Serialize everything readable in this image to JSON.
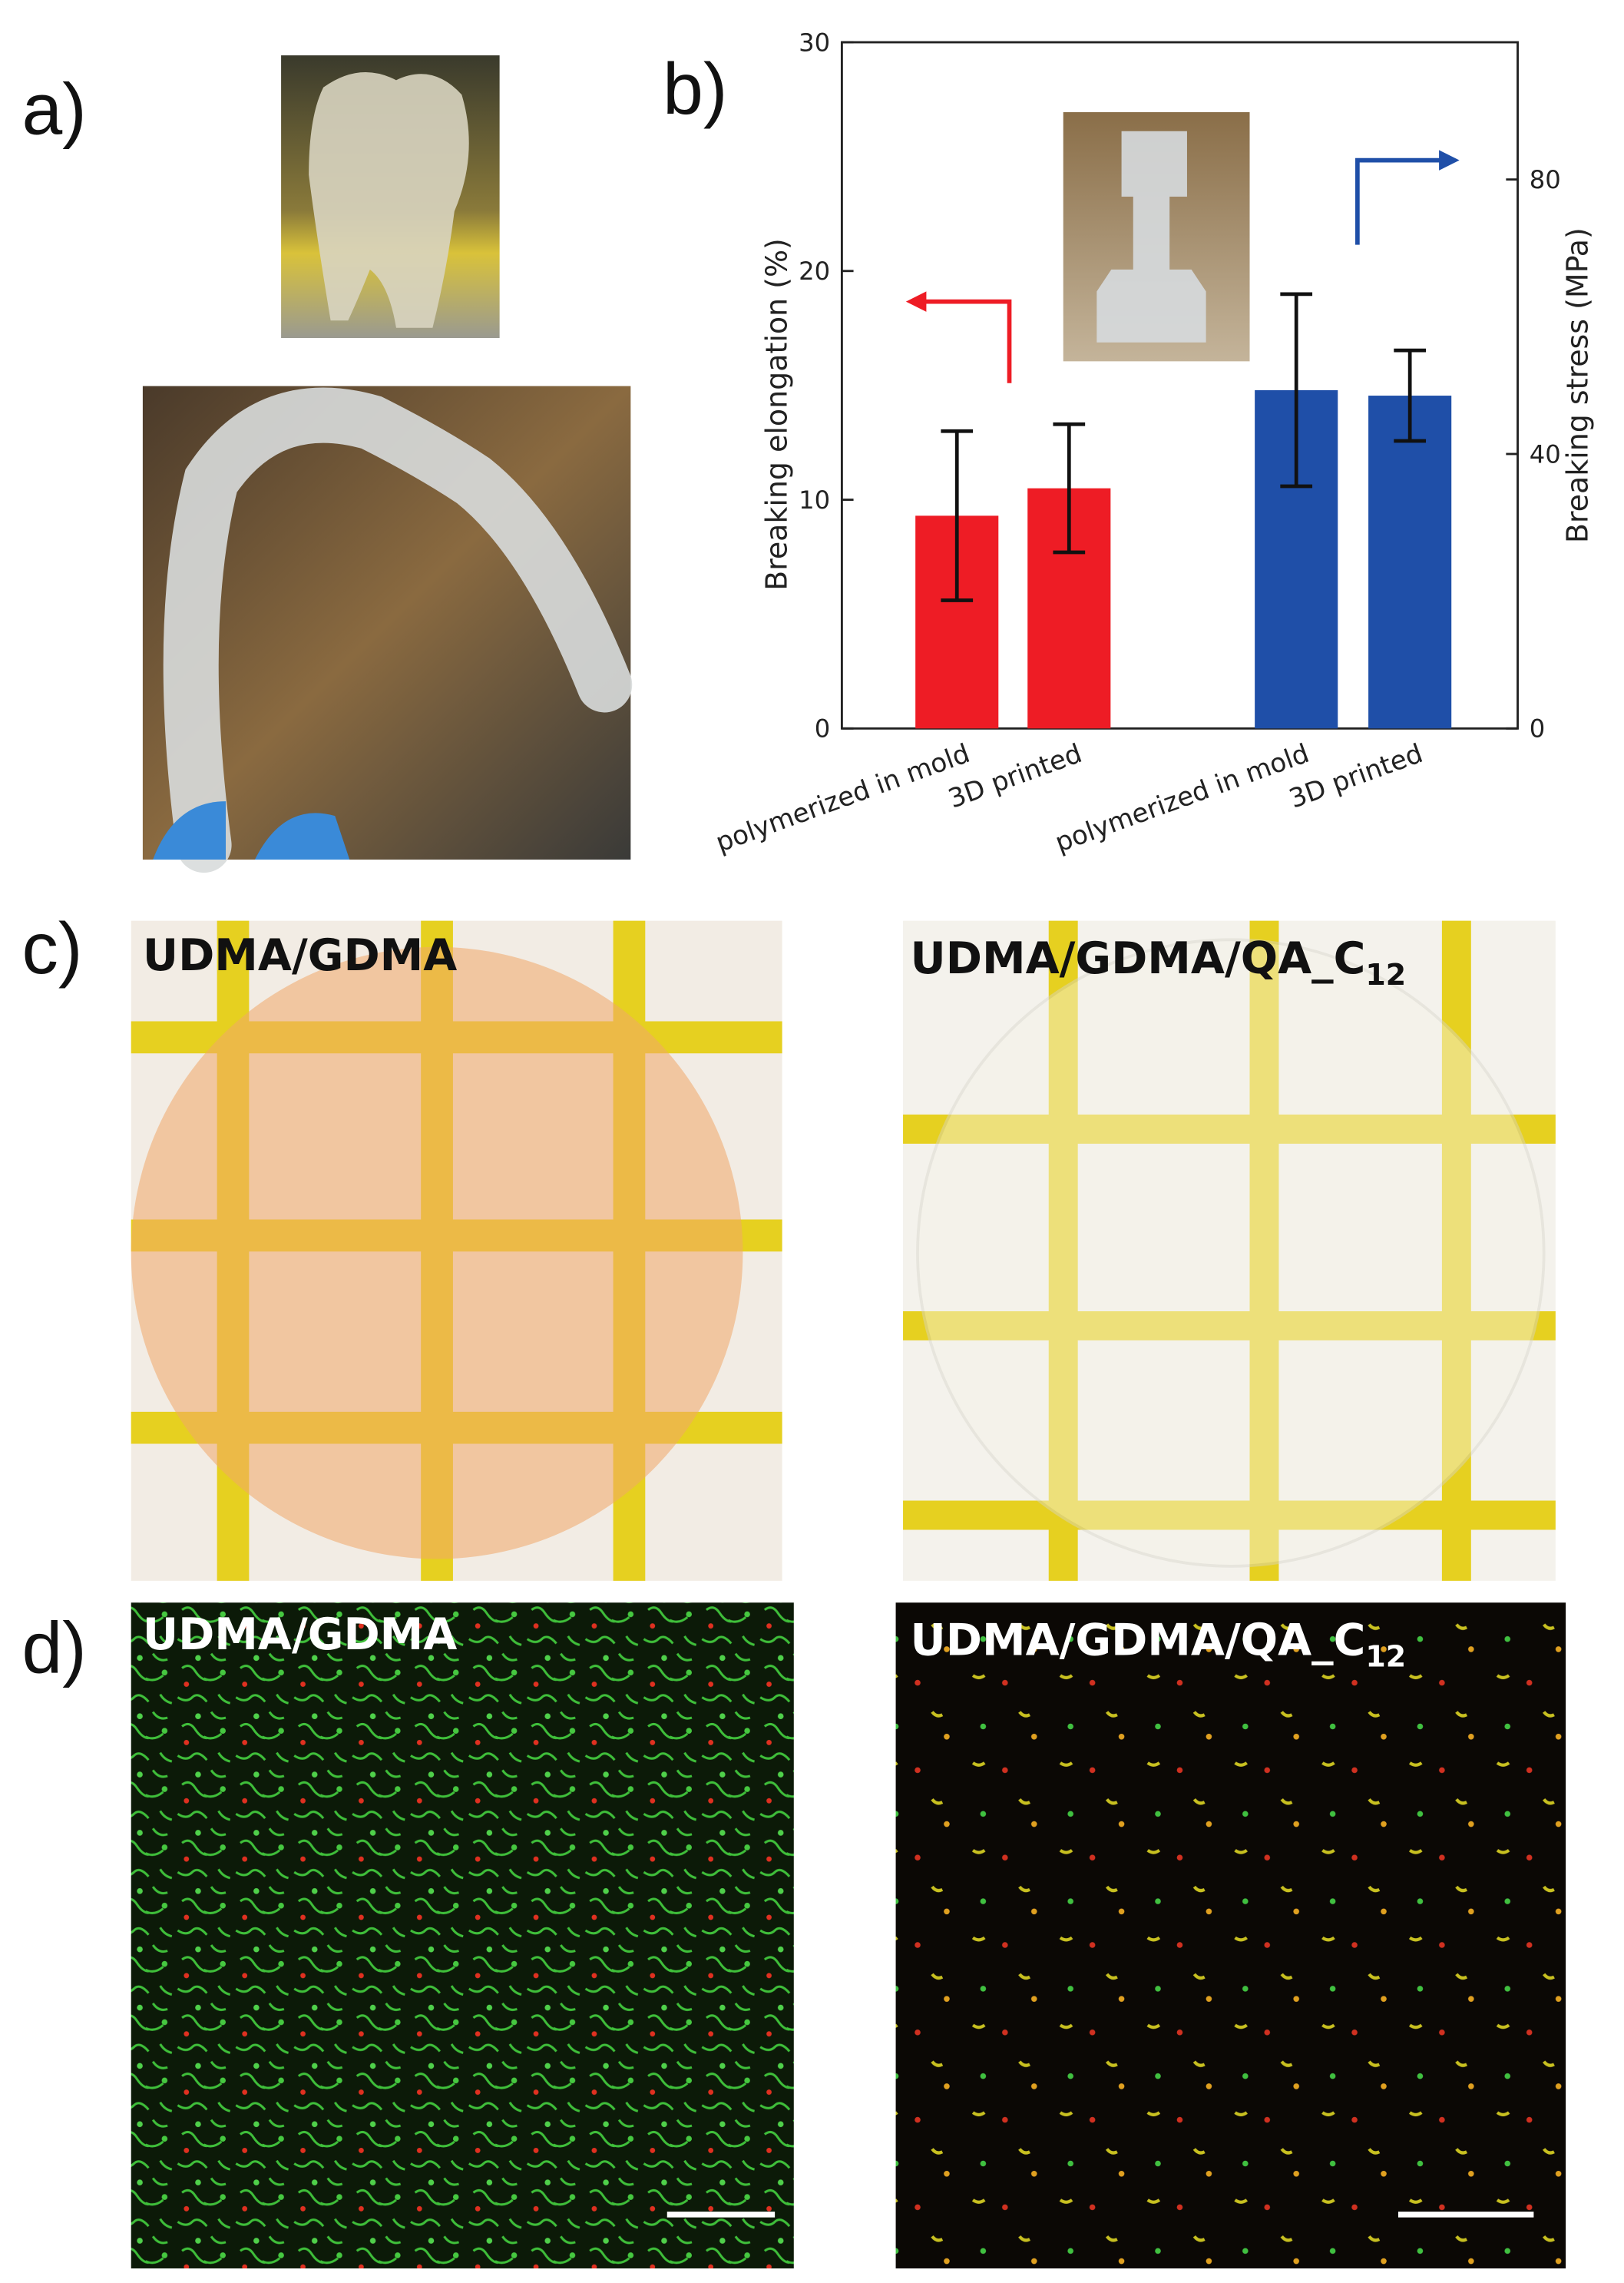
{
  "panels": {
    "a": "a)",
    "b": "b)",
    "c": "c)",
    "d": "d)"
  },
  "chart_data": {
    "type": "bar",
    "categories": [
      "polymerized in mold",
      "3D printed",
      "polymerized in mold",
      "3D printed"
    ],
    "ylabel": "Breaking elongation (%)",
    "y2label": "Breaking stress (MPa)",
    "ylim": [
      0,
      30
    ],
    "yticks": [
      0,
      10,
      20,
      30
    ],
    "y2lim": [
      0,
      100
    ],
    "y2ticks": [
      0,
      40,
      80
    ],
    "series": [
      {
        "color": "#ee1c25",
        "axis": "y",
        "values": [
          9.3,
          10.5,
          null,
          null
        ],
        "errors": [
          3.7,
          2.8,
          null,
          null
        ]
      },
      {
        "color": "#1f4fa8",
        "axis": "y2",
        "values": [
          null,
          null,
          49.3,
          48.5
        ],
        "errors": [
          null,
          null,
          14,
          6.6
        ]
      }
    ]
  },
  "photo_labels": {
    "c_left": "UDMA/GDMA",
    "c_right": {
      "text": "UDMA/GDMA/QA_C",
      "subscript": "12"
    },
    "d_left": "UDMA/GDMA",
    "d_right": {
      "text": "UDMA/GDMA/QA_C",
      "subscript": "12"
    }
  }
}
